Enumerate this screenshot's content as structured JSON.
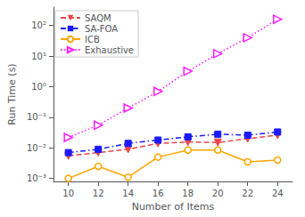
{
  "chart_data": {
    "type": "line",
    "xlabel": "Number of Items",
    "ylabel": "Run Time (s)",
    "x": [
      10,
      12,
      14,
      16,
      18,
      20,
      22,
      24
    ],
    "series": [
      {
        "name": "SAQM",
        "color": "#e8474c",
        "marker": "triangle_down",
        "line_style": "dashed",
        "values": [
          0.0055,
          0.007,
          0.009,
          0.014,
          0.0155,
          0.015,
          0.02,
          0.026
        ]
      },
      {
        "name": "SA-FOA",
        "color": "#1a1aff",
        "marker": "square",
        "line_style": "dashdot",
        "values": [
          0.007,
          0.009,
          0.014,
          0.018,
          0.023,
          0.028,
          0.026,
          0.033
        ]
      },
      {
        "name": "ICB",
        "color": "#ffa500",
        "marker": "open_circle",
        "line_style": "solid",
        "values": [
          0.001,
          0.0025,
          0.0011,
          0.005,
          0.0085,
          0.0085,
          0.0035,
          0.004
        ]
      },
      {
        "name": "Exhaustive",
        "color": "#ff1aff",
        "marker": "open_triangle_right",
        "line_style": "dotted",
        "values": [
          0.022,
          0.055,
          0.2,
          0.7,
          3.2,
          12,
          40,
          160
        ]
      }
    ],
    "xlim": [
      9,
      25
    ],
    "xticks": [
      10,
      12,
      14,
      16,
      18,
      20,
      22,
      24
    ],
    "ylim": [
      0.0008,
      400.0
    ],
    "yticks": [
      {
        "value": 0.001,
        "label": "10⁻³"
      },
      {
        "value": 0.01,
        "label": "10⁻²"
      },
      {
        "value": 0.1,
        "label": "10⁻¹"
      },
      {
        "value": 1,
        "label": "10⁰"
      },
      {
        "value": 10,
        "label": "10¹"
      },
      {
        "value": 100,
        "label": "10²"
      }
    ],
    "log": "y",
    "grid": false,
    "legend": "upper left"
  }
}
